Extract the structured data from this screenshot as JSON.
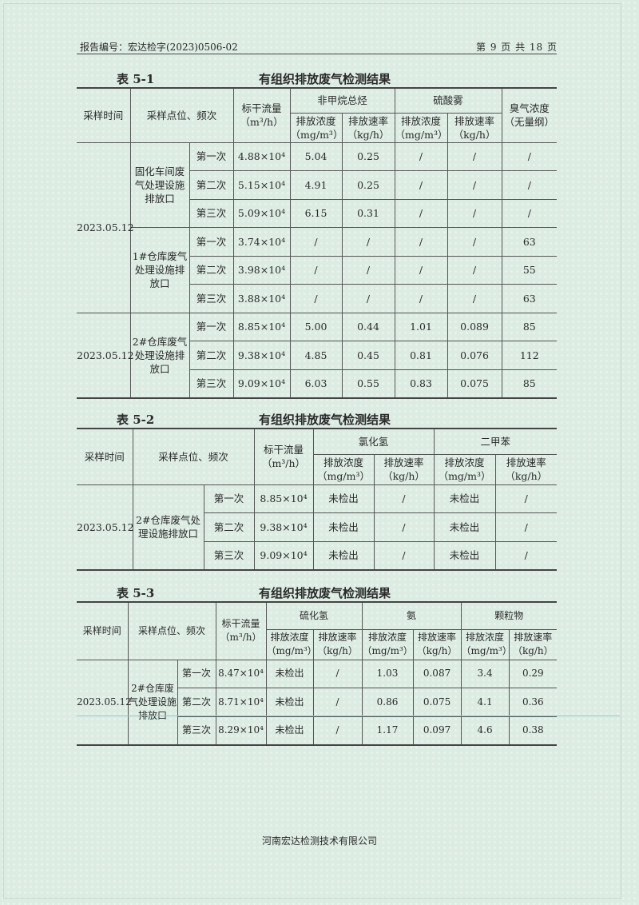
{
  "header": {
    "report_no": "报告编号：宏达检字(2023)0506-02",
    "page": "第 9 页 共 18 页"
  },
  "common": {
    "sample_time": "采样时间",
    "location_freq": "采样点位、频次",
    "flow": "标干流量",
    "flow_unit": "（m³/h）",
    "conc": "排放浓度",
    "conc_unit": "（mg/m³）",
    "rate": "排放速率",
    "rate_unit": "（kg/h）"
  },
  "table1": {
    "label": "表 5-1",
    "title": "有组织排放废气检测结果",
    "pollutants": [
      "非甲烷总烃",
      "硫酸雾"
    ],
    "odor": "臭气浓度",
    "odor_unit": "（无量纲）",
    "date1": "2023.05.12",
    "date2": "2023.05.12",
    "groups": [
      {
        "location": "固化车间废气处理设施排放口",
        "rows": [
          [
            "第一次",
            "4.88×10⁴",
            "5.04",
            "0.25",
            "/",
            "/",
            "/"
          ],
          [
            "第二次",
            "5.15×10⁴",
            "4.91",
            "0.25",
            "/",
            "/",
            "/"
          ],
          [
            "第三次",
            "5.09×10⁴",
            "6.15",
            "0.31",
            "/",
            "/",
            "/"
          ]
        ]
      },
      {
        "location": "1#仓库废气处理设施排放口",
        "rows": [
          [
            "第一次",
            "3.74×10⁴",
            "/",
            "/",
            "/",
            "/",
            "63"
          ],
          [
            "第二次",
            "3.98×10⁴",
            "/",
            "/",
            "/",
            "/",
            "55"
          ],
          [
            "第三次",
            "3.88×10⁴",
            "/",
            "/",
            "/",
            "/",
            "63"
          ]
        ]
      },
      {
        "location": "2#仓库废气处理设施排放口",
        "rows": [
          [
            "第一次",
            "8.85×10⁴",
            "5.00",
            "0.44",
            "1.01",
            "0.089",
            "85"
          ],
          [
            "第二次",
            "9.38×10⁴",
            "4.85",
            "0.45",
            "0.81",
            "0.076",
            "112"
          ],
          [
            "第三次",
            "9.09×10⁴",
            "6.03",
            "0.55",
            "0.83",
            "0.075",
            "85"
          ]
        ]
      }
    ]
  },
  "table2": {
    "label": "表 5-2",
    "title": "有组织排放废气检测结果",
    "pollutants": [
      "氯化氢",
      "二甲苯"
    ],
    "date": "2023.05.12",
    "location": "2#仓库废气处理设施排放口",
    "rows": [
      [
        "第一次",
        "8.85×10⁴",
        "未检出",
        "/",
        "未检出",
        "/"
      ],
      [
        "第二次",
        "9.38×10⁴",
        "未检出",
        "/",
        "未检出",
        "/"
      ],
      [
        "第三次",
        "9.09×10⁴",
        "未检出",
        "/",
        "未检出",
        "/"
      ]
    ]
  },
  "table3": {
    "label": "表 5-3",
    "title": "有组织排放废气检测结果",
    "pollutants": [
      "硫化氢",
      "氨",
      "颗粒物"
    ],
    "date": "2023.05.12",
    "location": "2#仓库废气处理设施排放口",
    "rows": [
      [
        "第一次",
        "8.47×10⁴",
        "未检出",
        "/",
        "1.03",
        "0.087",
        "3.4",
        "0.29"
      ],
      [
        "第二次",
        "8.71×10⁴",
        "未检出",
        "/",
        "0.86",
        "0.075",
        "4.1",
        "0.36"
      ],
      [
        "第三次",
        "8.29×10⁴",
        "未检出",
        "/",
        "1.17",
        "0.097",
        "4.6",
        "0.38"
      ]
    ]
  },
  "footer": {
    "company": "河南宏达检测技术有限公司"
  }
}
